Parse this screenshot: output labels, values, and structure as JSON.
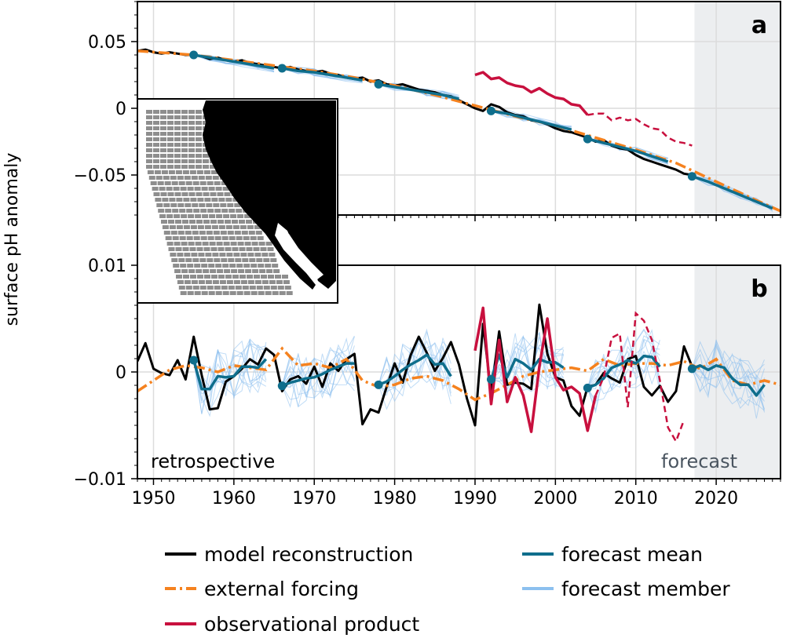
{
  "figure": {
    "ylabel": "surface pH anomaly",
    "panel_a_label": "a",
    "panel_b_label": "b",
    "retrospective_label": "retrospective",
    "forecast_label": "forecast"
  },
  "colors": {
    "model_reconstruction": "#000000",
    "external_forcing": "#f5821f",
    "observational_product": "#c8103e",
    "forecast_mean": "#0f6e8c",
    "forecast_member": "#8cc0ef",
    "forecast_shading": "#eceef0"
  },
  "legend": [
    {
      "key": "model_reconstruction",
      "label": "model reconstruction",
      "style": "solid"
    },
    {
      "key": "forecast_mean",
      "label": "forecast mean",
      "style": "solid"
    },
    {
      "key": "external_forcing",
      "label": "external forcing",
      "style": "dashdot"
    },
    {
      "key": "forecast_member",
      "label": "forecast member",
      "style": "solid"
    },
    {
      "key": "observational_product",
      "label": "observational product",
      "style": "solid"
    }
  ],
  "chart_data": [
    {
      "type": "line",
      "panel": "a",
      "xlim": [
        1948,
        2028
      ],
      "ylim": [
        -0.08,
        0.08
      ],
      "x_ticks": [
        1950,
        1960,
        1970,
        1980,
        1990,
        2000,
        2010,
        2020
      ],
      "x_tick_labels": [
        "1950",
        "1960",
        "1970",
        "1980",
        "1990",
        "2000",
        "2010",
        "2020"
      ],
      "y_ticks": [
        -0.05,
        0,
        0.05
      ],
      "y_tick_labels": [
        "−0.05",
        "0",
        "0.05"
      ],
      "grid": true,
      "forecast_region": [
        2017.3,
        2028
      ],
      "model_reconstruction": {
        "x": [
          1948,
          1949,
          1950,
          1951,
          1952,
          1953,
          1954,
          1955,
          1956,
          1957,
          1958,
          1959,
          1960,
          1961,
          1962,
          1963,
          1964,
          1965,
          1966,
          1967,
          1968,
          1969,
          1970,
          1971,
          1972,
          1973,
          1974,
          1975,
          1976,
          1977,
          1978,
          1979,
          1980,
          1981,
          1982,
          1983,
          1984,
          1985,
          1986,
          1987,
          1988,
          1989,
          1990,
          1991,
          1992,
          1993,
          1994,
          1995,
          1996,
          1997,
          1998,
          1999,
          2000,
          2001,
          2002,
          2003,
          2004,
          2005,
          2006,
          2007,
          2008,
          2009,
          2010,
          2011,
          2012,
          2013,
          2014,
          2015,
          2016,
          2017
        ],
        "y": [
          0.043,
          0.044,
          0.042,
          0.041,
          0.042,
          0.041,
          0.04,
          0.04,
          0.039,
          0.037,
          0.038,
          0.036,
          0.035,
          0.036,
          0.034,
          0.033,
          0.032,
          0.031,
          0.03,
          0.031,
          0.029,
          0.028,
          0.027,
          0.028,
          0.026,
          0.025,
          0.023,
          0.022,
          0.023,
          0.02,
          0.021,
          0.018,
          0.017,
          0.018,
          0.016,
          0.014,
          0.013,
          0.012,
          0.01,
          0.009,
          0.006,
          0.003,
          0,
          -0.002,
          0.003,
          0.001,
          -0.003,
          -0.005,
          -0.006,
          -0.009,
          -0.01,
          -0.012,
          -0.015,
          -0.017,
          -0.018,
          -0.02,
          -0.022,
          -0.025,
          -0.024,
          -0.028,
          -0.03,
          -0.031,
          -0.035,
          -0.038,
          -0.04,
          -0.042,
          -0.044,
          -0.046,
          -0.049,
          -0.05
        ]
      },
      "external_forcing": {
        "x": [
          1948,
          1955,
          1960,
          1965,
          1970,
          1975,
          1980,
          1985,
          1990,
          1995,
          2000,
          2005,
          2010,
          2015,
          2020,
          2025,
          2028
        ],
        "y": [
          0.043,
          0.04,
          0.036,
          0.032,
          0.028,
          0.023,
          0.017,
          0.01,
          0.002,
          -0.006,
          -0.013,
          -0.022,
          -0.031,
          -0.041,
          -0.055,
          -0.069,
          -0.077
        ]
      },
      "observational_product": {
        "x": [
          1990,
          1991,
          1992,
          1993,
          1994,
          1995,
          1996,
          1997,
          1998,
          1999,
          2000,
          2001,
          2002,
          2003,
          2004
        ],
        "y": [
          0.025,
          0.027,
          0.022,
          0.023,
          0.019,
          0.017,
          0.016,
          0.012,
          0.015,
          0.011,
          0.008,
          0.007,
          0.003,
          0.002,
          -0.005
        ]
      },
      "observational_product_dashed": {
        "x": [
          2004,
          2005,
          2006,
          2007,
          2008,
          2009,
          2010,
          2011,
          2012,
          2013,
          2014,
          2015,
          2016,
          2017
        ],
        "y": [
          -0.005,
          -0.004,
          -0.004,
          -0.009,
          -0.007,
          -0.009,
          -0.008,
          -0.012,
          -0.015,
          -0.016,
          -0.022,
          -0.025,
          -0.026,
          -0.028
        ]
      },
      "forecast_mean_segments": [
        {
          "x": [
            1955,
            1957,
            1959,
            1961,
            1963,
            1965
          ],
          "y": [
            0.04,
            0.038,
            0.036,
            0.034,
            0.032,
            0.03
          ]
        },
        {
          "x": [
            1966,
            1968,
            1970,
            1972,
            1974,
            1976
          ],
          "y": [
            0.03,
            0.028,
            0.027,
            0.025,
            0.023,
            0.021
          ]
        },
        {
          "x": [
            1978,
            1980,
            1982,
            1984,
            1986,
            1988
          ],
          "y": [
            0.018,
            0.016,
            0.014,
            0.012,
            0.01,
            0.007
          ]
        },
        {
          "x": [
            1992,
            1994,
            1996,
            1998,
            2000,
            2002
          ],
          "y": [
            -0.002,
            -0.004,
            -0.007,
            -0.01,
            -0.013,
            -0.016
          ]
        },
        {
          "x": [
            2004,
            2006,
            2008,
            2010,
            2012,
            2014
          ],
          "y": [
            -0.023,
            -0.026,
            -0.029,
            -0.032,
            -0.036,
            -0.04
          ]
        },
        {
          "x": [
            2017,
            2019,
            2021,
            2023,
            2025,
            2027
          ],
          "y": [
            -0.051,
            -0.055,
            -0.06,
            -0.065,
            -0.07,
            -0.075
          ]
        }
      ],
      "initialization_points": {
        "x": [
          1955,
          1966,
          1978,
          1992,
          2004,
          2017
        ],
        "y": [
          0.04,
          0.03,
          0.018,
          -0.002,
          -0.023,
          -0.051
        ]
      }
    },
    {
      "type": "line",
      "panel": "b",
      "xlim": [
        1948,
        2028
      ],
      "ylim": [
        -0.01,
        0.01
      ],
      "x_ticks": [
        1950,
        1960,
        1970,
        1980,
        1990,
        2000,
        2010,
        2020
      ],
      "x_tick_labels": [
        "1950",
        "1960",
        "1970",
        "1980",
        "1990",
        "2000",
        "2010",
        "2020"
      ],
      "y_ticks": [
        -0.01,
        0,
        0.01
      ],
      "y_tick_labels": [
        "−0.01",
        "0",
        "0.01"
      ],
      "grid": true,
      "forecast_region": [
        2017.3,
        2028
      ],
      "model_reconstruction": {
        "x": [
          1948,
          1949,
          1950,
          1951,
          1952,
          1953,
          1954,
          1955,
          1956,
          1957,
          1958,
          1959,
          1960,
          1961,
          1962,
          1963,
          1964,
          1965,
          1966,
          1967,
          1968,
          1969,
          1970,
          1971,
          1972,
          1973,
          1974,
          1975,
          1976,
          1977,
          1978,
          1979,
          1980,
          1981,
          1982,
          1983,
          1984,
          1985,
          1986,
          1987,
          1988,
          1989,
          1990,
          1991,
          1992,
          1993,
          1994,
          1995,
          1996,
          1997,
          1998,
          1999,
          2000,
          2001,
          2002,
          2003,
          2004,
          2005,
          2006,
          2007,
          2008,
          2009,
          2010,
          2011,
          2012,
          2013,
          2014,
          2015,
          2016,
          2017
        ],
        "y": [
          0.001,
          0.0027,
          0.0003,
          -0.0001,
          -0.0003,
          0.0011,
          -0.0007,
          0.0033,
          -0.0003,
          -0.0035,
          -0.0034,
          -0.0009,
          -0.0004,
          0.0003,
          0.0012,
          0.0007,
          0.0022,
          0.0016,
          -0.0018,
          -0.0007,
          -0.0004,
          -0.0011,
          0.0005,
          -0.0014,
          0.0008,
          0.0001,
          0.0012,
          0.0017,
          -0.0049,
          -0.0035,
          -0.0038,
          -0.0014,
          0.0008,
          -0.001,
          0.0016,
          0.0033,
          0.0018,
          0.0001,
          0.0013,
          0.0028,
          0.0007,
          -0.0025,
          -0.005,
          0.0045,
          -0.002,
          0.0038,
          -0.0012,
          -0.001,
          -0.0011,
          -0.0016,
          0.0063,
          0.0017,
          -0.0005,
          -0.0008,
          -0.0032,
          -0.0041,
          -0.0014,
          -0.0012,
          -0.0001,
          -0.0006,
          -0.001,
          0.0012,
          0.0015,
          -0.0014,
          -0.0022,
          -0.0013,
          -0.0028,
          -0.0018,
          0.0024,
          0.0005
        ]
      },
      "external_forcing": {
        "x": [
          1948,
          1950,
          1952,
          1954,
          1956,
          1958,
          1960,
          1962,
          1964,
          1966,
          1968,
          1970,
          1972,
          1974,
          1976,
          1978,
          1980,
          1982,
          1984,
          1986,
          1988,
          1990,
          1992,
          1994,
          1996,
          1998,
          2000,
          2002,
          2004,
          2006,
          2008,
          2010,
          2012,
          2014,
          2016,
          2018,
          2020,
          2022,
          2024,
          2026,
          2028
        ],
        "y": [
          -0.0018,
          -0.0008,
          0.0002,
          0.0006,
          0.0004,
          0.0,
          0.0006,
          0.0004,
          0.0002,
          0.0022,
          0.0006,
          0.0008,
          0.0004,
          0.0012,
          -0.0008,
          -0.0014,
          -0.0012,
          -0.0006,
          -0.0004,
          -0.0008,
          -0.0016,
          -0.0026,
          -0.002,
          -0.0012,
          -0.0004,
          0.0,
          0.0002,
          0.0004,
          0.0001,
          0.0012,
          0.0006,
          0.0008,
          0.0008,
          0.0006,
          0.001,
          0.0003,
          0.0012,
          -0.0008,
          -0.0012,
          -0.0008,
          -0.0012
        ]
      },
      "observational_product": {
        "x": [
          1990,
          1991,
          1992,
          1993,
          1994,
          1995,
          1996,
          1997,
          1998,
          1999,
          2000,
          2001,
          2002,
          2003,
          2004,
          2005
        ],
        "y": [
          0.002,
          0.006,
          -0.003,
          0.003,
          -0.0028,
          -0.0005,
          -0.0022,
          -0.0056,
          0.0005,
          0.005,
          -0.0005,
          -0.0017,
          -0.0014,
          -0.002,
          -0.0055,
          -0.0022
        ]
      },
      "observational_product_dashed": {
        "x": [
          2005,
          2006,
          2007,
          2008,
          2009,
          2010,
          2011,
          2012,
          2013,
          2014,
          2015,
          2016
        ],
        "y": [
          -0.0022,
          -0.0005,
          0.0032,
          0.0036,
          -0.0033,
          0.0055,
          0.0048,
          0.003,
          -0.0008,
          -0.0052,
          -0.0065,
          -0.0045
        ]
      },
      "forecast_mean_segments": [
        {
          "x": [
            1955,
            1956,
            1957,
            1958,
            1959,
            1960,
            1961,
            1962,
            1963,
            1964
          ],
          "y": [
            0.0011,
            -0.0016,
            -0.0016,
            -0.0004,
            -0.0005,
            -0.0004,
            0.0005,
            0.0005,
            0.0004,
            0.0012
          ]
        },
        {
          "x": [
            1966,
            1967,
            1968,
            1969,
            1970,
            1971,
            1972,
            1973,
            1974,
            1975
          ],
          "y": [
            -0.0013,
            -0.001,
            -0.0008,
            -0.0006,
            -0.0005,
            -0.0002,
            0.0002,
            0.0005,
            0.0008,
            0.0008
          ]
        },
        {
          "x": [
            1978,
            1979,
            1980,
            1981,
            1982,
            1983,
            1984,
            1985,
            1986,
            1987
          ],
          "y": [
            -0.0012,
            -0.0009,
            -0.0004,
            0.0002,
            0.0007,
            0.0011,
            0.0016,
            0.0007,
            0.0008,
            -0.0004
          ]
        },
        {
          "x": [
            1992,
            1993,
            1994,
            1995,
            1996,
            1997,
            1998,
            1999,
            2000,
            2001
          ],
          "y": [
            -0.0007,
            0.0016,
            -0.0005,
            0.0012,
            0.0008,
            0.0002,
            0.0012,
            0.0009,
            0.0009,
            0.0004
          ]
        },
        {
          "x": [
            2004,
            2005,
            2006,
            2007,
            2008,
            2009,
            2010,
            2011,
            2012,
            2013
          ],
          "y": [
            -0.0015,
            -0.0012,
            -0.0006,
            0.0004,
            0.0007,
            0.0011,
            0.0008,
            0.0015,
            0.0014,
            0.0005
          ]
        },
        {
          "x": [
            2017,
            2018,
            2019,
            2020,
            2021,
            2022,
            2023,
            2024,
            2025,
            2026
          ],
          "y": [
            0.0003,
            0.0006,
            0.0002,
            0.0006,
            0.0004,
            -0.0006,
            -0.0012,
            -0.0012,
            -0.0022,
            -0.0012
          ]
        }
      ],
      "initialization_points": {
        "x": [
          1955,
          1966,
          1978,
          1992,
          2004,
          2017
        ],
        "y": [
          0.0011,
          -0.0013,
          -0.0012,
          -0.0007,
          -0.0015,
          0.0003
        ]
      }
    }
  ]
}
